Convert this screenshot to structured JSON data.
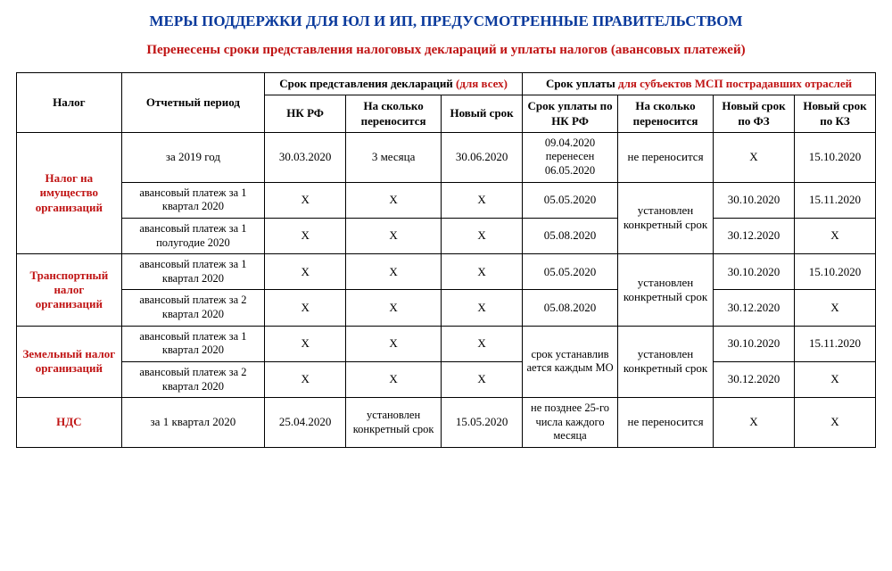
{
  "colors": {
    "title": "#0a3a9c",
    "subtitle": "#c01414",
    "decl_accent": "#c01414",
    "pay_accent": "#c01414",
    "tax_name": "#c01414",
    "text": "#000000",
    "border": "#000000",
    "background": "#ffffff"
  },
  "typography": {
    "family": "Times New Roman",
    "title_pt": 17,
    "subtitle_pt": 15,
    "cell_pt": 13
  },
  "title": "МЕРЫ ПОДДЕРЖКИ ДЛЯ ЮЛ И ИП, ПРЕДУСМОТРЕННЫЕ ПРАВИТЕЛЬСТВОМ",
  "subtitle": "Перенесены сроки представления налоговых деклараций и уплаты налогов (авансовых платежей)",
  "head": {
    "tax": "Налог",
    "period": "Отчетный период",
    "decl_prefix": "Срок представления деклараций ",
    "decl_suffix": "(для всех)",
    "pay_prefix": "Срок уплаты ",
    "pay_suffix": "для субъектов МСП пострадавших отраслей",
    "nk": "НК РФ",
    "shift": "На сколько переносится",
    "new": "Новый срок",
    "pay_nk": "Срок уплаты по НК РФ",
    "pay_shift": "На сколько переносится",
    "fz": "Новый срок по ФЗ",
    "kz": "Новый срок по КЗ"
  },
  "rows": {
    "r0": {
      "tax": "Налог на имущество организаций",
      "period": "за 2019 год",
      "nk": "30.03.2020",
      "shift": "3 месяца",
      "new": "30.06.2020",
      "paynk": "09.04.2020 перенесен 06.05.2020",
      "pshift": "не переносится",
      "fz": "X",
      "kz": "15.10.2020"
    },
    "r1": {
      "period": "авансовый платеж за 1 квартал 2020",
      "nk": "X",
      "shift": "X",
      "new": "X",
      "paynk": "05.05.2020",
      "pshift": "установлен конкретный срок",
      "fz": "30.10.2020",
      "kz": "15.11.2020"
    },
    "r2": {
      "period": "авансовый платеж за 1 полугодие 2020",
      "nk": "X",
      "shift": "X",
      "new": "X",
      "paynk": "05.08.2020",
      "fz": "30.12.2020",
      "kz": "X"
    },
    "r3": {
      "tax": "Транспортный налог организаций",
      "period": "авансовый платеж за 1 квартал 2020",
      "nk": "X",
      "shift": "X",
      "new": "X",
      "paynk": "05.05.2020",
      "pshift": "установлен конкретный срок",
      "fz": "30.10.2020",
      "kz": "15.10.2020"
    },
    "r4": {
      "period": "авансовый платеж за 2 квартал 2020",
      "nk": "X",
      "shift": "X",
      "new": "X",
      "paynk": "05.08.2020",
      "fz": "30.12.2020",
      "kz": "X"
    },
    "r5": {
      "tax": "Земельный налог организаций",
      "period": "авансовый платеж за 1 квартал 2020",
      "nk": "X",
      "shift": "X",
      "new": "X",
      "paynk": "срок устанавлив ается каждым МО",
      "pshift": "установлен конкретный срок",
      "fz": "30.10.2020",
      "kz": "15.11.2020"
    },
    "r6": {
      "period": "авансовый платеж за 2 квартал 2020",
      "nk": "X",
      "shift": "X",
      "new": "X",
      "fz": "30.12.2020",
      "kz": "X"
    },
    "r7": {
      "tax": "НДС",
      "period": "за 1 квартал 2020",
      "nk": "25.04.2020",
      "shift": "установлен конкретный срок",
      "new": "15.05.2020",
      "paynk": "не позднее 25-го числа каждого месяца",
      "pshift": "не переносится",
      "fz": "X",
      "kz": "X"
    }
  }
}
